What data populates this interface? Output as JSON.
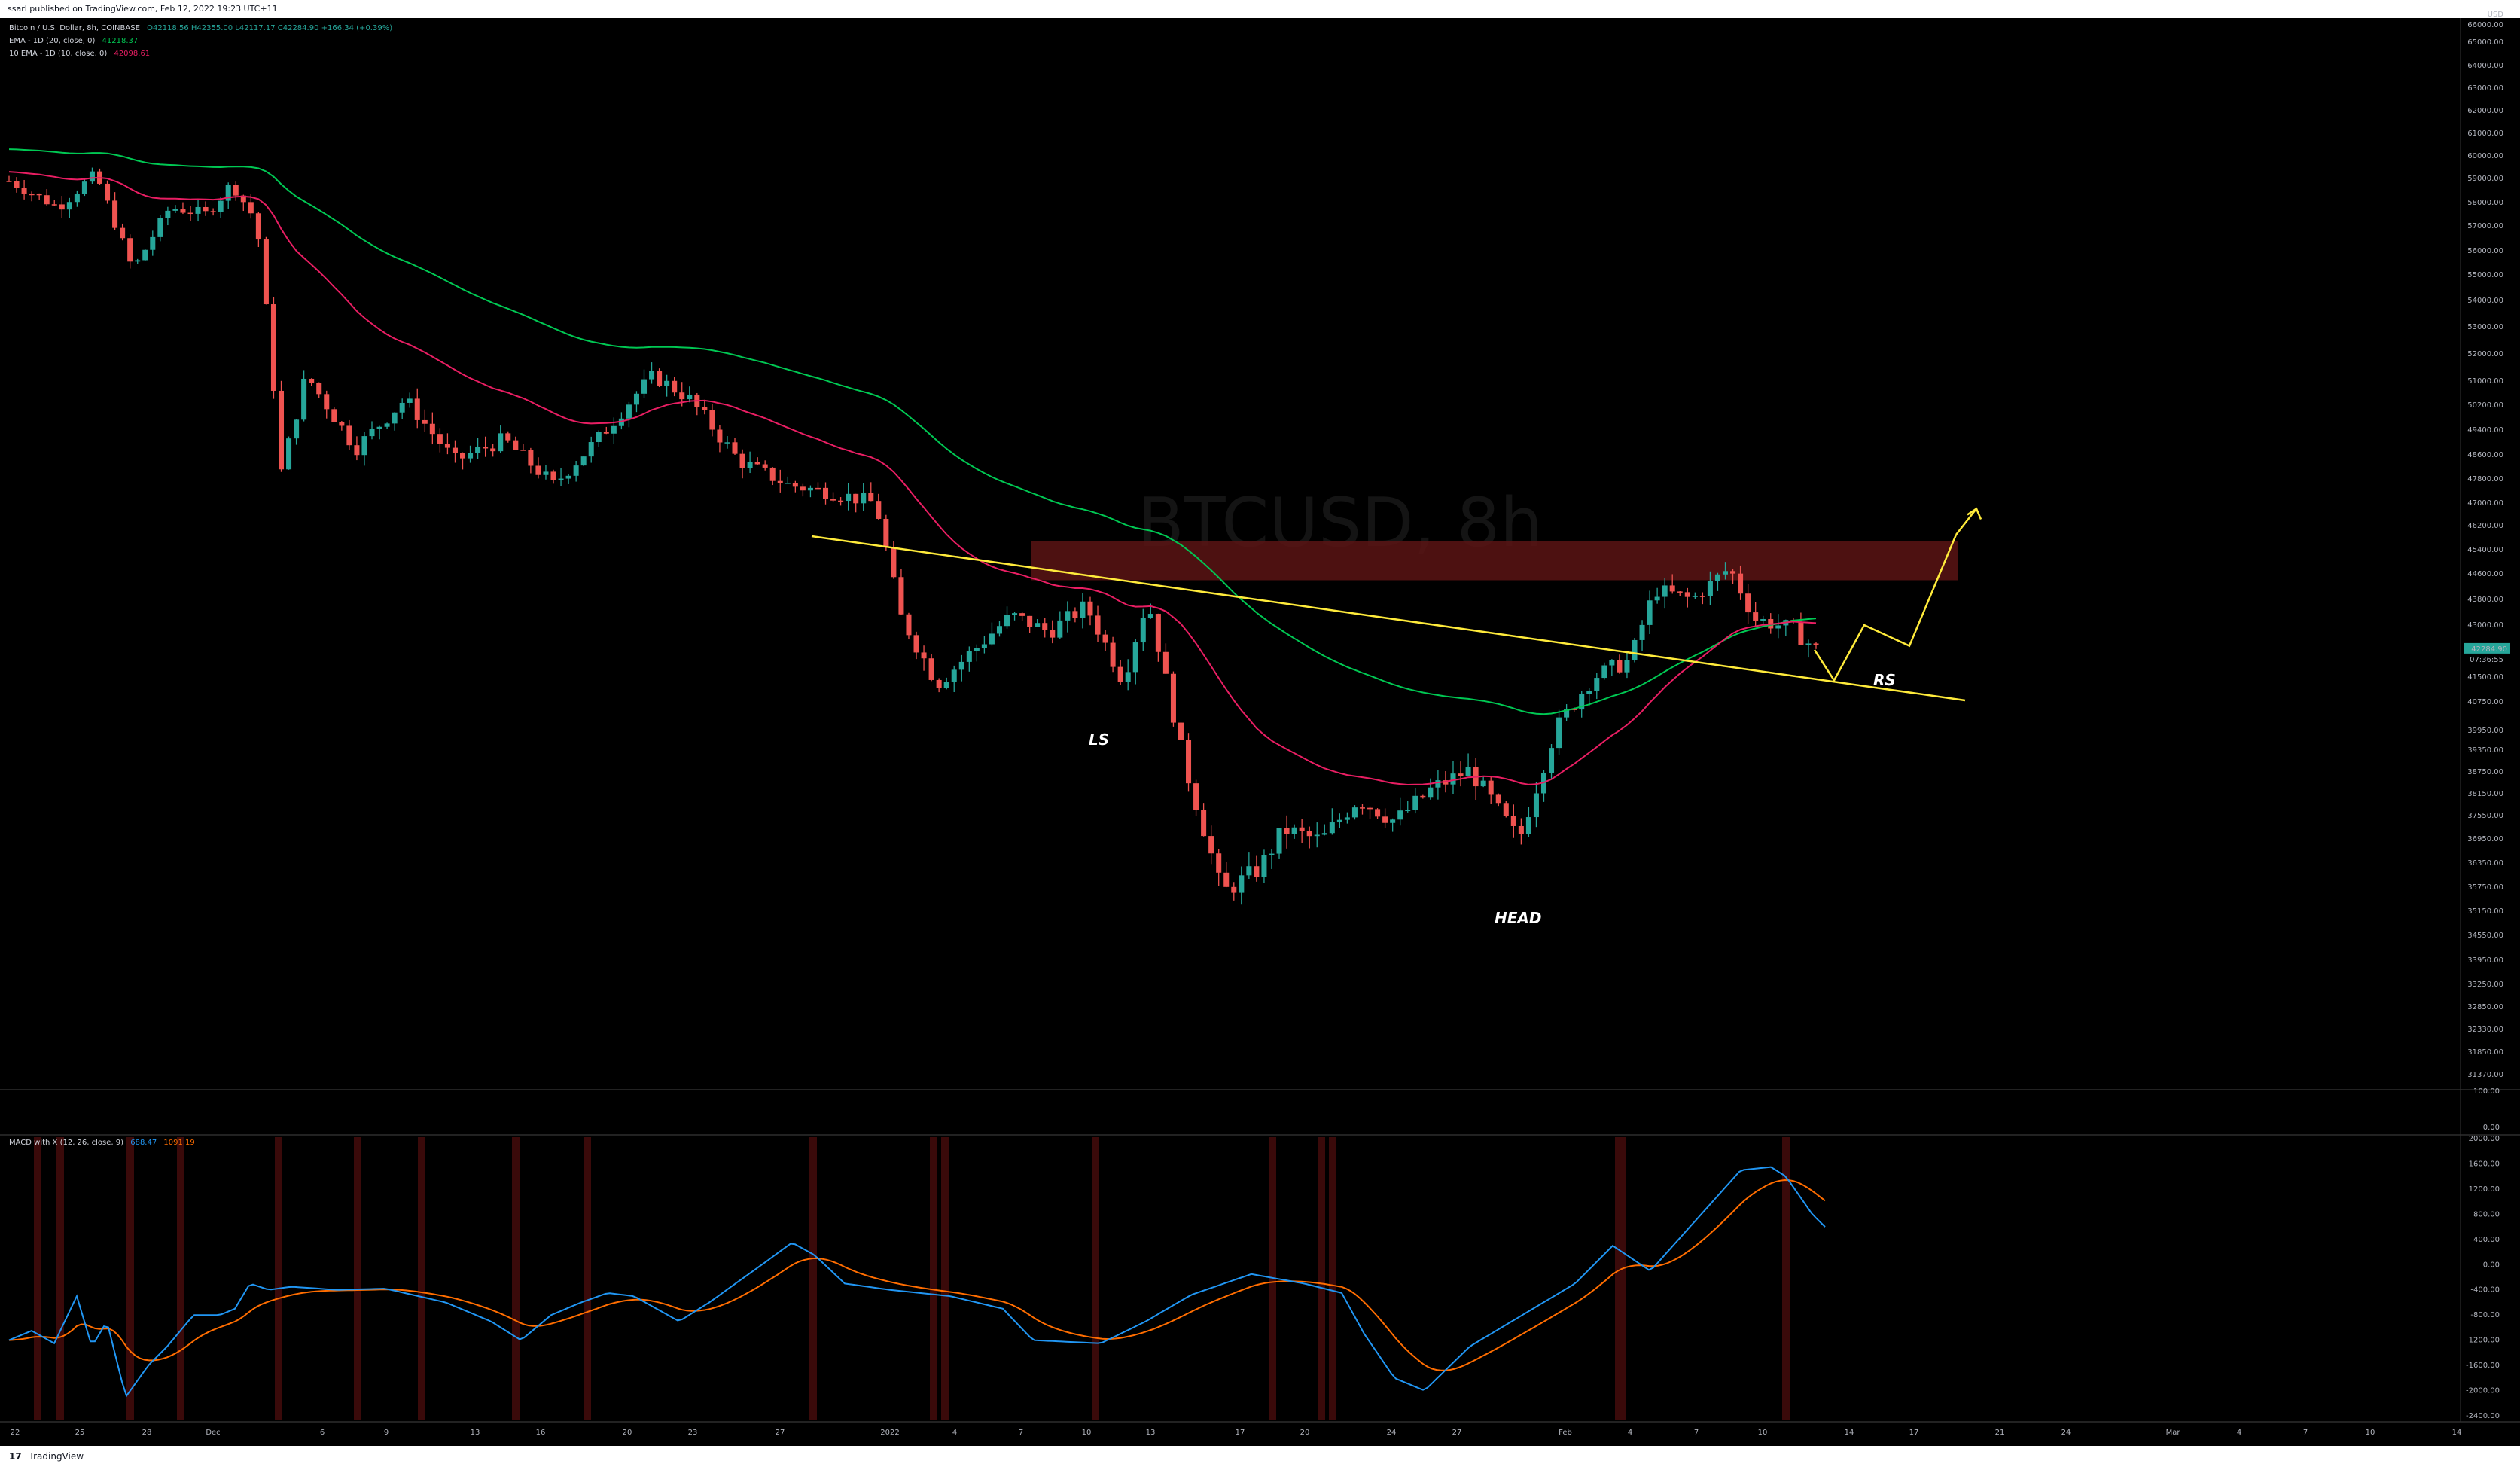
{
  "header": {
    "published": "ssarl published on TradingView.com, Feb 12, 2022 19:23 UTC+11"
  },
  "legend": {
    "symbol": "Bitcoin / U.S. Dollar, 8h, COINBASE",
    "ohlc": "O42118.56 H42355.00 L42117.17 C42284.90 +166.34 (+0.39%)",
    "ema20_label": "EMA - 1D (20, close, 0)",
    "ema20_value": "41218.37",
    "ema10_label": "10 EMA - 1D (10, close, 0)",
    "ema10_value": "42098.61"
  },
  "macd_legend": {
    "label": "MACD with X (12, 26, close, 9)",
    "macd_value": "688.47",
    "signal_value": "1091.19"
  },
  "watermark": "BTCUSD, 8h",
  "annotations": {
    "ls": "LS",
    "head": "HEAD",
    "rs": "RS"
  },
  "price_axis": {
    "currency": "USD",
    "last_price": "42284.90",
    "countdown": "07:36:55"
  },
  "footer": {
    "brand": "TradingView"
  },
  "colors": {
    "up": "#26a69a",
    "down": "#ef5350",
    "ema20": "#00c853",
    "ema10": "#e91e63",
    "macd": "#2196f3",
    "signal": "#ff6d00",
    "trendline": "#ffeb3b",
    "zone": "#5a1414"
  },
  "chart_data": {
    "type": "candlestick",
    "price_ticks": [
      "66000.00",
      "65000.00",
      "64000.00",
      "63000.00",
      "62000.00",
      "61000.00",
      "60000.00",
      "59000.00",
      "58000.00",
      "57000.00",
      "56000.00",
      "55000.00",
      "54000.00",
      "53000.00",
      "52000.00",
      "51000.00",
      "50200.00",
      "49400.00",
      "48600.00",
      "47800.00",
      "47000.00",
      "46200.00",
      "45400.00",
      "44600.00",
      "43800.00",
      "43000.00",
      "41500.00",
      "40750.00",
      "39950.00",
      "39350.00",
      "38750.00",
      "38150.00",
      "37550.00",
      "36950.00",
      "36350.00",
      "35750.00",
      "35150.00",
      "34550.00",
      "33950.00",
      "33250.00",
      "32850.00",
      "32330.00",
      "31850.00",
      "31370.00"
    ],
    "indicator_ticks": [
      "100.00",
      "0.00"
    ],
    "macd_ticks": [
      "2000.00",
      "1600.00",
      "1200.00",
      "800.00",
      "400.00",
      "0.00",
      "-400.00",
      "-800.00",
      "-1200.00",
      "-1600.00",
      "-2000.00",
      "-2400.00"
    ],
    "time_ticks": [
      "22",
      "25",
      "28",
      "Dec",
      "6",
      "9",
      "13",
      "16",
      "20",
      "23",
      "27",
      "2022",
      "4",
      "7",
      "10",
      "13",
      "17",
      "20",
      "24",
      "27",
      "Feb",
      "4",
      "7",
      "10",
      "14",
      "17",
      "21",
      "24",
      "Mar",
      "4",
      "7",
      "10",
      "14"
    ],
    "ranges": {
      "price_low": 31370,
      "price_high": 66000,
      "macd_low": -2400,
      "macd_high": 2000
    },
    "resistance_zone": [
      44400,
      45700
    ],
    "projected_path": [
      [
        42284.9,
        41400
      ],
      [
        43000,
        42600
      ],
      [
        44000,
        45900
      ]
    ]
  }
}
